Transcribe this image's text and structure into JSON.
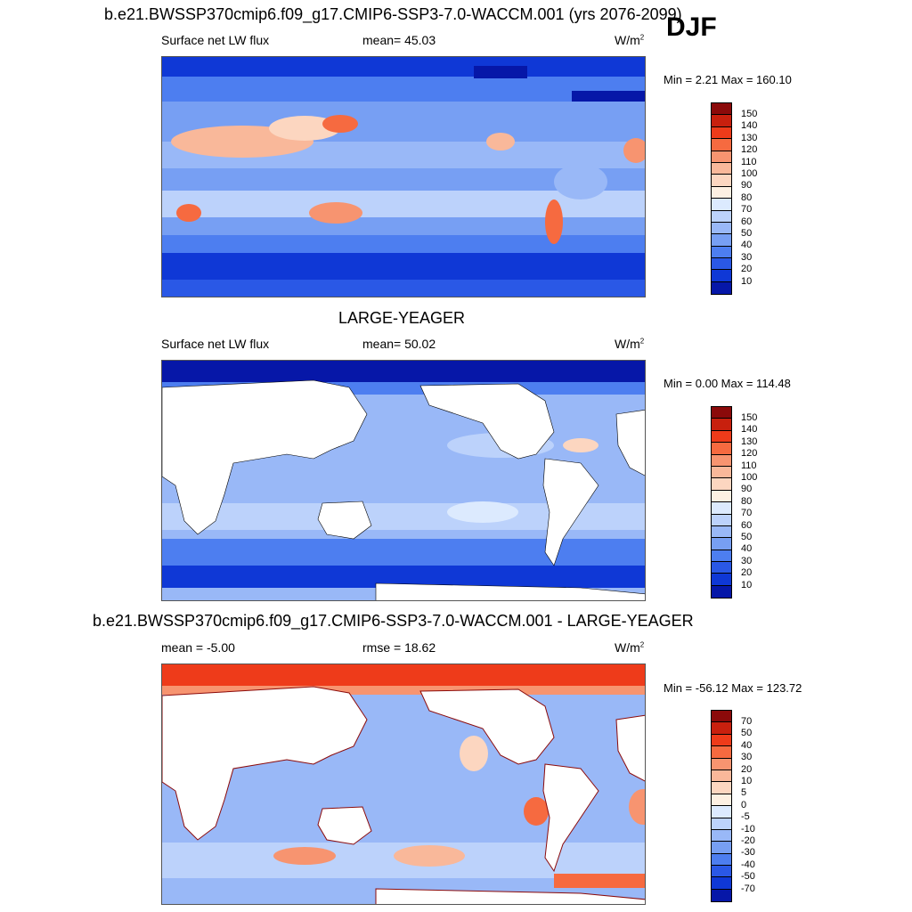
{
  "season": "DJF",
  "panels": [
    {
      "title": "b.e21.BWSSP370cmip6.f09_g17.CMIP6-SSP3-7.0-WACCM.001 (yrs 2076-2099)",
      "left_label": "Surface net LW flux",
      "mid_label": "mean=  45.03",
      "units_base": "W/m",
      "units_exp": "2",
      "minmax": "Min =   2.21 Max = 160.10",
      "colorbar_labels": [
        "150",
        "140",
        "130",
        "120",
        "110",
        "100",
        "90",
        "80",
        "70",
        "60",
        "50",
        "40",
        "30",
        "20",
        "10"
      ],
      "colorbar_colors": [
        "#8b0a0a",
        "#c8200e",
        "#ee3b1a",
        "#f66a40",
        "#f79470",
        "#f9b89a",
        "#fcd6c0",
        "#fdf0e2",
        "#dceafe",
        "#bcd2fb",
        "#99b8f7",
        "#779ff3",
        "#4d7ef0",
        "#2a58e6",
        "#0f38d6",
        "#0617a8"
      ]
    },
    {
      "title": "LARGE-YEAGER",
      "left_label": "Surface net LW flux",
      "mid_label": "mean=  50.02",
      "units_base": "W/m",
      "units_exp": "2",
      "minmax": "Min =   0.00 Max = 114.48",
      "colorbar_labels": [
        "150",
        "140",
        "130",
        "120",
        "110",
        "100",
        "90",
        "80",
        "70",
        "60",
        "50",
        "40",
        "30",
        "20",
        "10"
      ],
      "colorbar_colors": [
        "#8b0a0a",
        "#c8200e",
        "#ee3b1a",
        "#f66a40",
        "#f79470",
        "#f9b89a",
        "#fcd6c0",
        "#fdf0e2",
        "#dceafe",
        "#bcd2fb",
        "#99b8f7",
        "#779ff3",
        "#4d7ef0",
        "#2a58e6",
        "#0f38d6",
        "#0617a8"
      ]
    },
    {
      "title": "b.e21.BWSSP370cmip6.f09_g17.CMIP6-SSP3-7.0-WACCM.001 - LARGE-YEAGER",
      "left_label": "mean =  -5.00",
      "mid_label": "rmse =  18.62",
      "units_base": "W/m",
      "units_exp": "2",
      "minmax": "Min = -56.12 Max = 123.72",
      "colorbar_labels": [
        "70",
        "50",
        "40",
        "30",
        "20",
        "10",
        "5",
        "0",
        "-5",
        "-10",
        "-20",
        "-30",
        "-40",
        "-50",
        "-70"
      ],
      "colorbar_colors": [
        "#8b0a0a",
        "#c8200e",
        "#ee3b1a",
        "#f66a40",
        "#f79470",
        "#f9b89a",
        "#fcd6c0",
        "#fdf0e2",
        "#dceafe",
        "#bcd2fb",
        "#99b8f7",
        "#779ff3",
        "#4d7ef0",
        "#2a58e6",
        "#0f38d6",
        "#0617a8"
      ]
    }
  ]
}
